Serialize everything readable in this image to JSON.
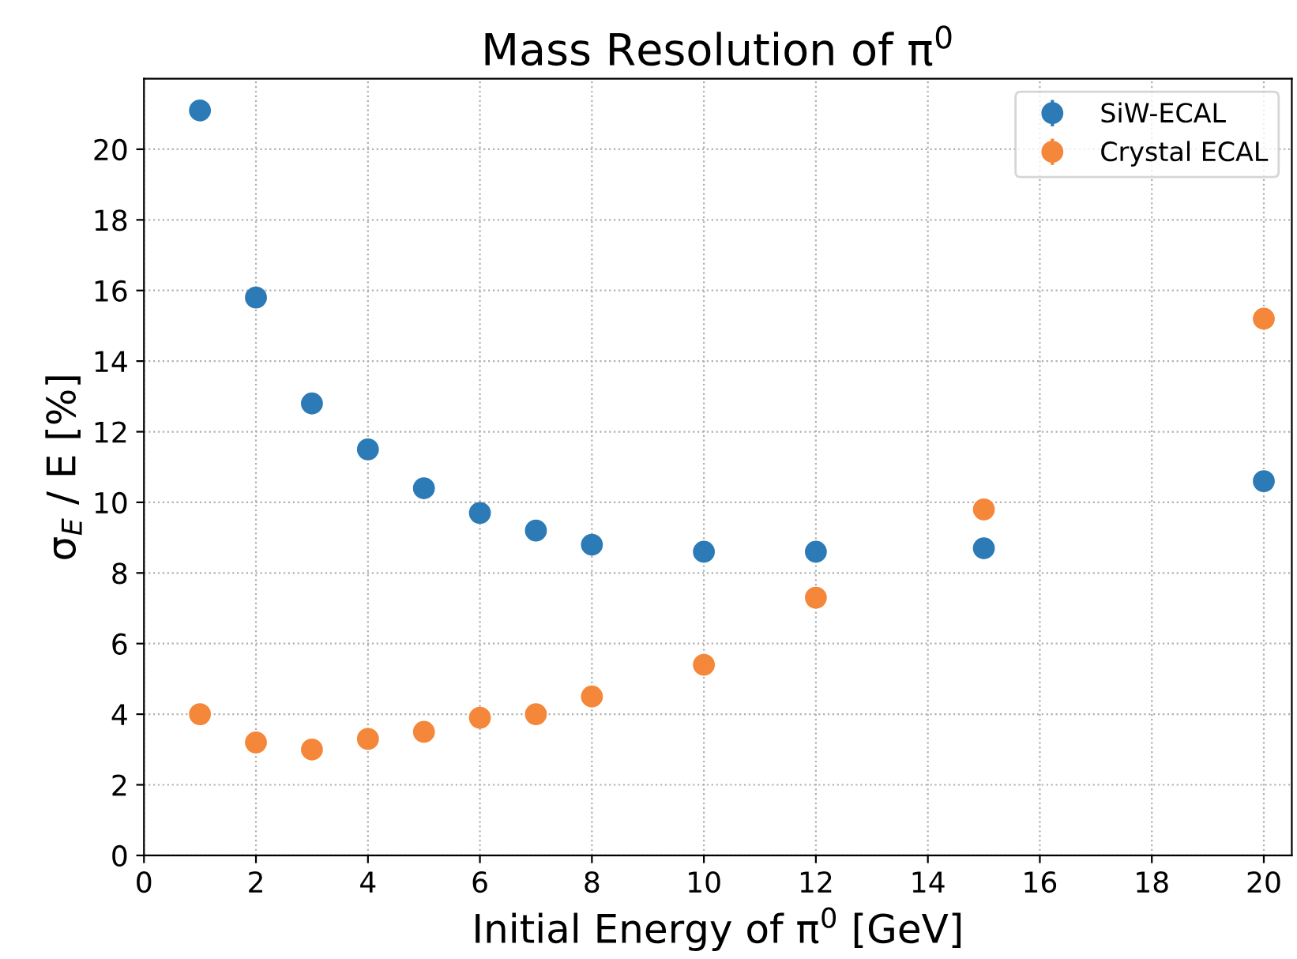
{
  "chart_data": {
    "type": "scatter",
    "title": "Mass Resolution of π$^{0}$",
    "xlabel": "Initial Energy of π$^{0}$ [GeV]",
    "ylabel": "σ$_{E}$ / E [%]",
    "x": [
      1,
      2,
      3,
      4,
      5,
      6,
      7,
      8,
      10,
      12,
      15,
      20
    ],
    "series": [
      {
        "name": "SiW-ECAL",
        "color": "#2c7bb6",
        "values": [
          21.1,
          15.8,
          12.8,
          11.5,
          10.4,
          9.7,
          9.2,
          8.8,
          8.6,
          8.6,
          8.7,
          10.6
        ]
      },
      {
        "name": "Crystal ECAL",
        "color": "#f5873a",
        "values": [
          4.0,
          3.2,
          3.0,
          3.3,
          3.5,
          3.9,
          4.0,
          4.5,
          5.4,
          7.3,
          9.8,
          15.2
        ]
      }
    ],
    "xlim": [
      0,
      20.5
    ],
    "ylim": [
      0,
      22
    ],
    "xticks": [
      0,
      2,
      4,
      6,
      8,
      10,
      12,
      14,
      16,
      18,
      20
    ],
    "yticks": [
      0,
      2,
      4,
      6,
      8,
      10,
      12,
      14,
      16,
      18,
      20
    ],
    "grid": true,
    "legend": "top right",
    "marker": "circle"
  }
}
